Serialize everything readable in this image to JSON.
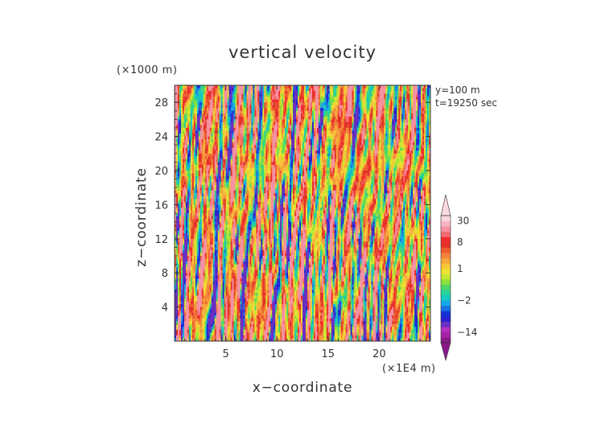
{
  "chart_data": {
    "type": "heatmap",
    "title": "vertical velocity",
    "xlabel": "x−coordinate",
    "ylabel": "z−coordinate",
    "x_unit": "(×1E4 m)",
    "y_unit": "(×1000 m)",
    "annotations": [
      "y=100 m",
      "t=19250 sec"
    ],
    "x_ticks": [
      5,
      10,
      15,
      20
    ],
    "y_ticks": [
      4,
      8,
      12,
      16,
      20,
      24,
      28
    ],
    "xlim": [
      0,
      25
    ],
    "ylim": [
      0,
      30
    ],
    "colorbar": {
      "labels": [
        {
          "value": 30,
          "text": "30"
        },
        {
          "value": 8,
          "text": "8"
        },
        {
          "value": 1,
          "text": "1"
        },
        {
          "value": -2,
          "text": "−2"
        },
        {
          "value": -14,
          "text": "−14"
        }
      ],
      "extend": "both",
      "colors": [
        "#8a1a8a",
        "#a423a4",
        "#b22ebf",
        "#6b2fc2",
        "#2b1fd0",
        "#1433d8",
        "#1a6fe0",
        "#18a7e6",
        "#18c7c0",
        "#27d39a",
        "#4cd769",
        "#8de03c",
        "#c7e632",
        "#eee233",
        "#f7c63a",
        "#f6a53c",
        "#f3853a",
        "#ee5c2f",
        "#e03328",
        "#ef2c2c",
        "#f36a72",
        "#f591a2",
        "#f8b6c4",
        "#fad9de"
      ]
    },
    "field_description": "Vertically elongated streaks of alternating updrafts (orange/red) and downdrafts (blue) across the full domain; values range roughly from -14 to 30."
  }
}
